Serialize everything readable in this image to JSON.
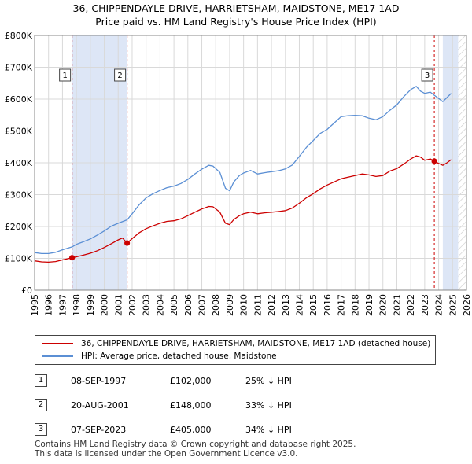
{
  "title": {
    "line1": "36, CHIPPENDAYLE DRIVE, HARRIETSHAM, MAIDSTONE, ME17 1AD",
    "line2": "Price paid vs. HM Land Registry's House Price Index (HPI)"
  },
  "colors": {
    "property": "#cc0000",
    "hpi": "#5b8fd4",
    "band": "#dde6f6",
    "grid": "#d9d9d9",
    "dashed": "#cc0000"
  },
  "chart_data": {
    "type": "line",
    "xlim": [
      1995,
      2026
    ],
    "ylim": [
      0,
      800000
    ],
    "x_ticks": [
      "1995",
      "1996",
      "1997",
      "1998",
      "1999",
      "2000",
      "2001",
      "2002",
      "2003",
      "2004",
      "2005",
      "2006",
      "2007",
      "2008",
      "2009",
      "2010",
      "2011",
      "2012",
      "2013",
      "2014",
      "2015",
      "2016",
      "2017",
      "2018",
      "2019",
      "2020",
      "2021",
      "2022",
      "2023",
      "2024",
      "2025",
      "2026"
    ],
    "y_ticks": [
      {
        "value": 0,
        "label": "£0"
      },
      {
        "value": 100000,
        "label": "£100K"
      },
      {
        "value": 200000,
        "label": "£200K"
      },
      {
        "value": 300000,
        "label": "£300K"
      },
      {
        "value": 400000,
        "label": "£400K"
      },
      {
        "value": 500000,
        "label": "£500K"
      },
      {
        "value": 600000,
        "label": "£600K"
      },
      {
        "value": 700000,
        "label": "£700K"
      },
      {
        "value": 800000,
        "label": "£800K"
      }
    ],
    "shaded_bands": [
      [
        1997.69,
        2001.64
      ],
      [
        2024.3,
        2025.4
      ]
    ],
    "hatch_region": [
      2025.4,
      2026
    ],
    "series": [
      {
        "name": "36, CHIPPENDAYLE DRIVE, HARRIETSHAM, MAIDSTONE, ME17 1AD (detached house)",
        "color": "#cc0000",
        "x": [
          1995.0,
          1995.5,
          1996.0,
          1996.5,
          1997.0,
          1997.69,
          1998.0,
          1998.5,
          1999.0,
          1999.5,
          2000.0,
          2000.5,
          2001.0,
          2001.3,
          2001.64,
          2001.64,
          2002.0,
          2002.5,
          2003.0,
          2003.5,
          2004.0,
          2004.5,
          2005.0,
          2005.5,
          2006.0,
          2006.5,
          2007.0,
          2007.5,
          2007.8,
          2008.3,
          2008.7,
          2009.0,
          2009.3,
          2009.7,
          2010.0,
          2010.5,
          2011.0,
          2011.5,
          2012.0,
          2012.5,
          2013.0,
          2013.5,
          2014.0,
          2014.5,
          2015.0,
          2015.5,
          2016.0,
          2016.5,
          2017.0,
          2017.5,
          2018.0,
          2018.5,
          2019.0,
          2019.5,
          2020.0,
          2020.5,
          2021.0,
          2021.5,
          2022.0,
          2022.4,
          2022.7,
          2023.0,
          2023.4,
          2023.69,
          2023.69,
          2024.0,
          2024.3,
          2024.6,
          2024.9
        ],
        "y": [
          92000,
          89000,
          88000,
          90000,
          95000,
          102000,
          105000,
          110000,
          116000,
          124000,
          134000,
          146000,
          158000,
          164000,
          148000,
          148000,
          162000,
          180000,
          193000,
          202000,
          210000,
          216000,
          218000,
          224000,
          234000,
          245000,
          255000,
          263000,
          262000,
          245000,
          210000,
          206000,
          222000,
          234000,
          240000,
          245000,
          240000,
          243000,
          245000,
          247000,
          250000,
          258000,
          273000,
          290000,
          303000,
          318000,
          330000,
          340000,
          350000,
          355000,
          360000,
          365000,
          362000,
          357000,
          360000,
          374000,
          382000,
          396000,
          412000,
          422000,
          418000,
          408000,
          412000,
          405000,
          405000,
          398000,
          392000,
          400000,
          410000
        ]
      },
      {
        "name": "HPI: Average price, detached house, Maidstone",
        "color": "#5b8fd4",
        "x": [
          1995.0,
          1995.5,
          1996.0,
          1996.5,
          1997.0,
          1997.69,
          1998.0,
          1998.5,
          1999.0,
          1999.5,
          2000.0,
          2000.5,
          2001.0,
          2001.64,
          2002.0,
          2002.5,
          2003.0,
          2003.5,
          2004.0,
          2004.5,
          2005.0,
          2005.5,
          2006.0,
          2006.5,
          2007.0,
          2007.5,
          2007.8,
          2008.3,
          2008.7,
          2009.0,
          2009.3,
          2009.7,
          2010.0,
          2010.5,
          2011.0,
          2011.5,
          2012.0,
          2012.5,
          2013.0,
          2013.5,
          2014.0,
          2014.5,
          2015.0,
          2015.5,
          2016.0,
          2016.5,
          2017.0,
          2017.5,
          2018.0,
          2018.5,
          2019.0,
          2019.5,
          2020.0,
          2020.5,
          2021.0,
          2021.5,
          2022.0,
          2022.4,
          2022.7,
          2023.0,
          2023.4,
          2023.69,
          2024.0,
          2024.3,
          2024.6,
          2024.9
        ],
        "y": [
          118000,
          115000,
          115000,
          119000,
          127000,
          136000,
          144000,
          152000,
          161000,
          173000,
          186000,
          201000,
          210000,
          221000,
          240000,
          268000,
          290000,
          303000,
          313000,
          322000,
          327000,
          335000,
          348000,
          365000,
          380000,
          392000,
          390000,
          370000,
          320000,
          312000,
          340000,
          360000,
          368000,
          376000,
          365000,
          369000,
          372000,
          375000,
          381000,
          393000,
          420000,
          448000,
          470000,
          492000,
          505000,
          525000,
          545000,
          548000,
          549000,
          548000,
          540000,
          535000,
          545000,
          565000,
          582000,
          608000,
          630000,
          640000,
          625000,
          618000,
          622000,
          612000,
          602000,
          592000,
          605000,
          618000
        ]
      }
    ],
    "sales": [
      {
        "num": "1",
        "x": 1997.69,
        "y": 102000,
        "date": "08-SEP-1997",
        "price": "£102,000",
        "hpi_diff": "25% ↓ HPI"
      },
      {
        "num": "2",
        "x": 2001.64,
        "y": 148000,
        "date": "20-AUG-2001",
        "price": "£148,000",
        "hpi_diff": "33% ↓ HPI"
      },
      {
        "num": "3",
        "x": 2023.69,
        "y": 405000,
        "date": "07-SEP-2023",
        "price": "£405,000",
        "hpi_diff": "34% ↓ HPI"
      }
    ]
  },
  "legend": {
    "property_label": "36, CHIPPENDAYLE DRIVE, HARRIETSHAM, MAIDSTONE, ME17 1AD (detached house)",
    "hpi_label": "HPI: Average price, detached house, Maidstone"
  },
  "footer": {
    "line1": "Contains HM Land Registry data © Crown copyright and database right 2025.",
    "line2": "This data is licensed under the Open Government Licence v3.0."
  }
}
